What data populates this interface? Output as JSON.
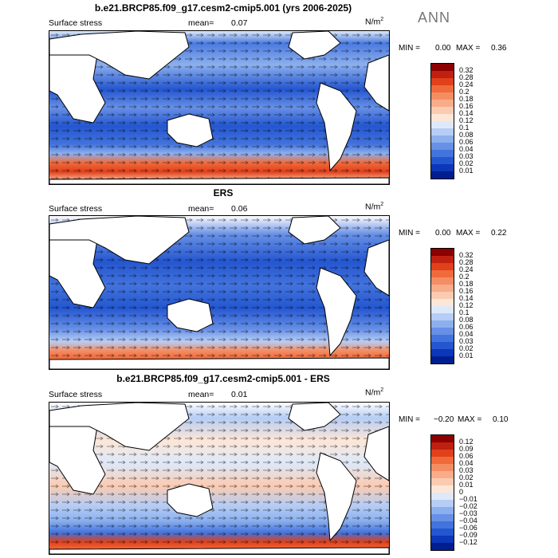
{
  "season": "ANN",
  "panels": [
    {
      "title": "b.e21.BRCP85.f09_g17.cesm2-cmip5.001 (yrs 2006-2025)",
      "variable": "Surface stress",
      "mean_label": "mean=",
      "mean_value": "0.07",
      "units_base": "N/m",
      "units_exp": "2",
      "min_label": "MIN =",
      "min_value": "0.00",
      "max_label": "MAX =",
      "max_value": "0.36",
      "levels": [
        "0.32",
        "0.28",
        "0.24",
        "0.2",
        "0.18",
        "0.16",
        "0.14",
        "0.12",
        "0.1",
        "0.08",
        "0.06",
        "0.04",
        "0.03",
        "0.02",
        "0.01"
      ],
      "colors": [
        "#8b0000",
        "#c02010",
        "#e0401a",
        "#f06a3c",
        "#f58d63",
        "#f8ac8a",
        "#fbcbb1",
        "#fde6d6",
        "#dde9fa",
        "#b6cdf5",
        "#8cb0ee",
        "#6790e6",
        "#4373dc",
        "#2456d0",
        "#0b37b8",
        "#001e90"
      ]
    },
    {
      "title": "ERS",
      "variable": "Surface stress",
      "mean_label": "mean=",
      "mean_value": "0.06",
      "units_base": "N/m",
      "units_exp": "2",
      "min_label": "MIN =",
      "min_value": "0.00",
      "max_label": "MAX =",
      "max_value": "0.22",
      "levels": [
        "0.32",
        "0.28",
        "0.24",
        "0.2",
        "0.18",
        "0.16",
        "0.14",
        "0.12",
        "0.1",
        "0.08",
        "0.06",
        "0.04",
        "0.03",
        "0.02",
        "0.01"
      ],
      "colors": [
        "#8b0000",
        "#c02010",
        "#e0401a",
        "#f06a3c",
        "#f58d63",
        "#f8ac8a",
        "#fbcbb1",
        "#fde6d6",
        "#dde9fa",
        "#b6cdf5",
        "#8cb0ee",
        "#6790e6",
        "#4373dc",
        "#2456d0",
        "#0b37b8",
        "#001e90"
      ]
    },
    {
      "title": "b.e21.BRCP85.f09_g17.cesm2-cmip5.001 - ERS",
      "variable": "Surface stress",
      "mean_label": "mean=",
      "mean_value": "0.01",
      "units_base": "N/m",
      "units_exp": "2",
      "min_label": "MIN =",
      "min_value": "−0.20",
      "max_label": "MAX =",
      "max_value": "0.10",
      "levels": [
        "0.12",
        "0.09",
        "0.06",
        "0.04",
        "0.03",
        "0.02",
        "0.01",
        "0",
        "−0.01",
        "−0.02",
        "−0.03",
        "−0.04",
        "−0.06",
        "−0.09",
        "−0.12"
      ],
      "colors": [
        "#8b0000",
        "#c02010",
        "#e0401a",
        "#f06a3c",
        "#f58d63",
        "#f8ac8a",
        "#fbcbb1",
        "#fde6d6",
        "#dde9fa",
        "#b6cdf5",
        "#8cb0ee",
        "#6790e6",
        "#4373dc",
        "#2456d0",
        "#0b37b8",
        "#001e90"
      ]
    }
  ]
}
